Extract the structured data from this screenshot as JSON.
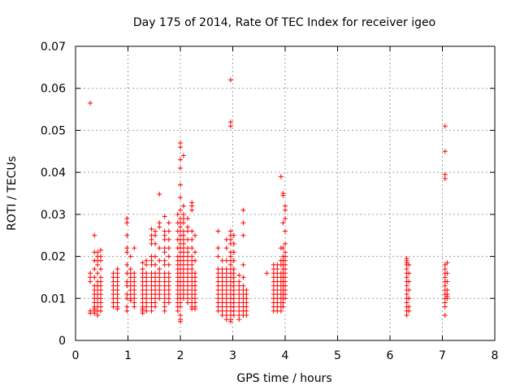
{
  "chart_data": {
    "type": "scatter",
    "title": "Day 175 of 2014, Rate Of TEC Index for receiver igeo",
    "xlabel": "GPS time / hours",
    "ylabel": "ROTI / TECUs",
    "xlim": [
      0,
      8
    ],
    "ylim": [
      0,
      0.07
    ],
    "xticks": [
      "0",
      "1",
      "2",
      "3",
      "4",
      "5",
      "6",
      "7",
      "8"
    ],
    "yticks": [
      "0",
      "0.01",
      "0.02",
      "0.03",
      "0.04",
      "0.05",
      "0.06",
      "0.07"
    ],
    "grid": true,
    "marker": "+",
    "series_color": "#ff0000",
    "clusters": [
      {
        "x": 0.28,
        "values": [
          0.0565,
          0.016,
          0.015,
          0.014,
          0.007,
          0.0065
        ]
      },
      {
        "x": 0.36,
        "values": [
          0.025,
          0.021,
          0.019,
          0.017,
          0.015,
          0.013,
          0.012,
          0.011,
          0.01,
          0.009,
          0.008,
          0.0075,
          0.007,
          0.0065
        ]
      },
      {
        "x": 0.42,
        "values": [
          0.021,
          0.02,
          0.019,
          0.018,
          0.016,
          0.014,
          0.013,
          0.012,
          0.011,
          0.01,
          0.009,
          0.008,
          0.007,
          0.006
        ]
      },
      {
        "x": 0.48,
        "values": [
          0.0215,
          0.02,
          0.019,
          0.017,
          0.015,
          0.014,
          0.013,
          0.012,
          0.011,
          0.01,
          0.009,
          0.008,
          0.007
        ]
      },
      {
        "x": 0.72,
        "values": [
          0.016,
          0.015,
          0.014,
          0.013,
          0.012,
          0.011,
          0.01,
          0.009,
          0.008
        ]
      },
      {
        "x": 0.8,
        "values": [
          0.017,
          0.016,
          0.015,
          0.014,
          0.013,
          0.012,
          0.011,
          0.01,
          0.009,
          0.008,
          0.0075
        ]
      },
      {
        "x": 0.98,
        "values": [
          0.029,
          0.028,
          0.025,
          0.022,
          0.021,
          0.018,
          0.016,
          0.014,
          0.013,
          0.011,
          0.01,
          0.008,
          0.007
        ]
      },
      {
        "x": 1.05,
        "values": [
          0.02,
          0.017,
          0.016,
          0.015,
          0.014,
          0.013,
          0.012,
          0.011,
          0.01,
          0.0095
        ]
      },
      {
        "x": 1.12,
        "values": [
          0.022,
          0.016,
          0.015,
          0.014,
          0.013,
          0.012,
          0.011,
          0.01,
          0.009,
          0.008
        ]
      },
      {
        "x": 1.28,
        "values": [
          0.0185,
          0.017,
          0.016,
          0.015,
          0.014,
          0.013,
          0.012,
          0.011,
          0.01,
          0.009,
          0.008,
          0.0075,
          0.007,
          0.0065
        ]
      },
      {
        "x": 1.35,
        "values": [
          0.019,
          0.018,
          0.016,
          0.015,
          0.014,
          0.013,
          0.012,
          0.011,
          0.01,
          0.009,
          0.008,
          0.007
        ]
      },
      {
        "x": 1.45,
        "values": [
          0.0265,
          0.025,
          0.024,
          0.023,
          0.02,
          0.019,
          0.018,
          0.016,
          0.015,
          0.014,
          0.013,
          0.012,
          0.011,
          0.01,
          0.009,
          0.008,
          0.007
        ]
      },
      {
        "x": 1.52,
        "values": [
          0.026,
          0.025,
          0.023,
          0.02,
          0.018,
          0.016,
          0.015,
          0.014,
          0.013,
          0.012,
          0.011,
          0.01,
          0.009,
          0.008
        ]
      },
      {
        "x": 1.6,
        "values": [
          0.0348,
          0.028,
          0.027,
          0.022,
          0.019,
          0.017,
          0.016,
          0.015,
          0.014,
          0.013,
          0.012,
          0.011,
          0.01
        ]
      },
      {
        "x": 1.7,
        "values": [
          0.0295,
          0.026,
          0.025,
          0.024,
          0.022,
          0.021,
          0.019,
          0.018,
          0.016,
          0.015,
          0.014,
          0.013,
          0.012,
          0.011,
          0.01,
          0.009,
          0.008,
          0.007
        ]
      },
      {
        "x": 1.78,
        "values": [
          0.028,
          0.026,
          0.024,
          0.022,
          0.02,
          0.018,
          0.016,
          0.015,
          0.014,
          0.013,
          0.012,
          0.011,
          0.01,
          0.009
        ]
      },
      {
        "x": 1.95,
        "values": [
          0.03,
          0.028,
          0.026,
          0.024,
          0.022,
          0.02,
          0.019,
          0.018,
          0.017,
          0.016,
          0.015,
          0.014,
          0.013,
          0.012,
          0.011,
          0.01,
          0.009,
          0.008,
          0.007
        ]
      },
      {
        "x": 2.0,
        "values": [
          0.047,
          0.046,
          0.043,
          0.041,
          0.037,
          0.034,
          0.031,
          0.029,
          0.028,
          0.027,
          0.026,
          0.025,
          0.024,
          0.023,
          0.022,
          0.021,
          0.02,
          0.019,
          0.018,
          0.017,
          0.016,
          0.015,
          0.014,
          0.013,
          0.012,
          0.011,
          0.01,
          0.009,
          0.008,
          0.006,
          0.005,
          0.0045
        ]
      },
      {
        "x": 2.06,
        "values": [
          0.044,
          0.032,
          0.03,
          0.029,
          0.028,
          0.026,
          0.025,
          0.024,
          0.023,
          0.022,
          0.021,
          0.02,
          0.019,
          0.018,
          0.017,
          0.016,
          0.015,
          0.014,
          0.013,
          0.012,
          0.011,
          0.01
        ]
      },
      {
        "x": 2.14,
        "values": [
          0.029,
          0.027,
          0.026,
          0.024,
          0.022,
          0.021,
          0.02,
          0.019,
          0.018,
          0.017,
          0.016,
          0.015,
          0.014,
          0.013,
          0.012,
          0.011,
          0.01,
          0.009
        ]
      },
      {
        "x": 2.22,
        "values": [
          0.0328,
          0.032,
          0.031,
          0.026,
          0.024,
          0.022,
          0.02,
          0.019,
          0.018,
          0.017,
          0.016,
          0.015,
          0.014,
          0.013,
          0.012,
          0.011,
          0.01,
          0.009,
          0.008,
          0.0075
        ]
      },
      {
        "x": 2.28,
        "values": [
          0.025,
          0.021,
          0.019,
          0.016,
          0.015,
          0.014,
          0.013,
          0.012,
          0.011,
          0.01,
          0.009,
          0.008,
          0.0075
        ]
      },
      {
        "x": 2.72,
        "values": [
          0.026,
          0.022,
          0.02,
          0.017,
          0.016,
          0.015,
          0.014,
          0.013,
          0.012,
          0.011,
          0.01,
          0.009,
          0.008,
          0.007
        ]
      },
      {
        "x": 2.8,
        "values": [
          0.019,
          0.017,
          0.016,
          0.015,
          0.014,
          0.013,
          0.012,
          0.011,
          0.01,
          0.009,
          0.008,
          0.007,
          0.006
        ]
      },
      {
        "x": 2.88,
        "values": [
          0.024,
          0.022,
          0.019,
          0.017,
          0.016,
          0.015,
          0.014,
          0.013,
          0.012,
          0.011,
          0.01,
          0.009,
          0.008,
          0.007,
          0.006,
          0.005
        ]
      },
      {
        "x": 2.96,
        "values": [
          0.062,
          0.052,
          0.051,
          0.026,
          0.025,
          0.024,
          0.023,
          0.021,
          0.02,
          0.019,
          0.018,
          0.017,
          0.016,
          0.015,
          0.014,
          0.013,
          0.012,
          0.011,
          0.01,
          0.009,
          0.008,
          0.007,
          0.006,
          0.005,
          0.0045
        ]
      },
      {
        "x": 3.02,
        "values": [
          0.025,
          0.023,
          0.021,
          0.019,
          0.017,
          0.016,
          0.015,
          0.014,
          0.013,
          0.012,
          0.011,
          0.01,
          0.009,
          0.008,
          0.007,
          0.006
        ]
      },
      {
        "x": 3.12,
        "values": [
          0.0155,
          0.014,
          0.013,
          0.012,
          0.011,
          0.01,
          0.009,
          0.008,
          0.007,
          0.006,
          0.005
        ]
      },
      {
        "x": 3.2,
        "values": [
          0.031,
          0.028,
          0.025,
          0.018,
          0.015,
          0.013,
          0.012,
          0.011,
          0.01,
          0.009,
          0.008,
          0.007,
          0.006
        ]
      },
      {
        "x": 3.26,
        "values": [
          0.012,
          0.011,
          0.01,
          0.009,
          0.008,
          0.007,
          0.006
        ]
      },
      {
        "x": 3.65,
        "values": [
          0.016
        ]
      },
      {
        "x": 3.78,
        "values": [
          0.018,
          0.017,
          0.016,
          0.015,
          0.014,
          0.013,
          0.012,
          0.011,
          0.01,
          0.009,
          0.008,
          0.007
        ]
      },
      {
        "x": 3.85,
        "values": [
          0.018,
          0.017,
          0.016,
          0.015,
          0.014,
          0.013,
          0.012,
          0.011,
          0.01,
          0.009,
          0.008,
          0.007
        ]
      },
      {
        "x": 3.92,
        "values": [
          0.039,
          0.022,
          0.019,
          0.018,
          0.016,
          0.015,
          0.014,
          0.013,
          0.012,
          0.011,
          0.01,
          0.009,
          0.008,
          0.007
        ]
      },
      {
        "x": 3.96,
        "values": [
          0.035,
          0.0345,
          0.028,
          0.022,
          0.02,
          0.019,
          0.018,
          0.017,
          0.016,
          0.015,
          0.014,
          0.013,
          0.012,
          0.011,
          0.01,
          0.009,
          0.008
        ]
      },
      {
        "x": 4.0,
        "values": [
          0.032,
          0.031,
          0.029,
          0.026,
          0.023,
          0.021,
          0.02,
          0.019,
          0.018,
          0.017,
          0.016,
          0.015,
          0.014,
          0.013,
          0.012,
          0.011,
          0.01
        ]
      },
      {
        "x": 6.32,
        "values": [
          0.0195,
          0.019,
          0.0185,
          0.018,
          0.017,
          0.016,
          0.015,
          0.014,
          0.013,
          0.012,
          0.011,
          0.01,
          0.009,
          0.008,
          0.007,
          0.006
        ]
      },
      {
        "x": 6.36,
        "values": [
          0.018,
          0.016,
          0.014,
          0.012,
          0.01,
          0.008,
          0.007
        ]
      },
      {
        "x": 7.05,
        "values": [
          0.051,
          0.045,
          0.0395,
          0.0385,
          0.018,
          0.017,
          0.016,
          0.015,
          0.014,
          0.013,
          0.012,
          0.011,
          0.01,
          0.009,
          0.008,
          0.006
        ]
      },
      {
        "x": 7.09,
        "values": [
          0.0185,
          0.016,
          0.014,
          0.012,
          0.011,
          0.0105,
          0.01
        ]
      }
    ]
  }
}
